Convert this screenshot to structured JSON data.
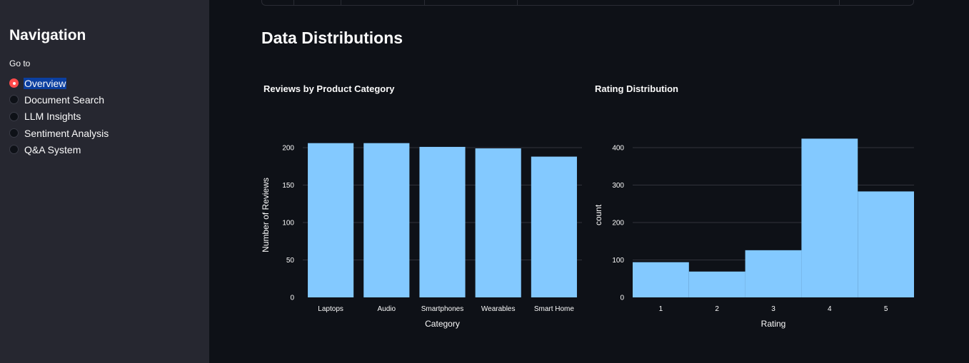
{
  "sidebar": {
    "title": "Navigation",
    "goto_label": "Go to",
    "items": [
      {
        "label": "Overview",
        "selected": true
      },
      {
        "label": "Document Search",
        "selected": false
      },
      {
        "label": "LLM Insights",
        "selected": false
      },
      {
        "label": "Sentiment Analysis",
        "selected": false
      },
      {
        "label": "Q&A System",
        "selected": false
      }
    ]
  },
  "main": {
    "title": "Data Distributions"
  },
  "colors": {
    "background": "#0e1117",
    "sidebar": "#262730",
    "bar": "#83c9ff",
    "radio_selected": "#ff4b4b",
    "highlight": "#0b3fa0"
  },
  "chart_data": [
    {
      "type": "bar",
      "title": "Reviews by Product Category",
      "xlabel": "Category",
      "ylabel": "Number of Reviews",
      "categories": [
        "Laptops",
        "Audio",
        "Smartphones",
        "Wearables",
        "Smart Home"
      ],
      "values": [
        206,
        206,
        201,
        199,
        188
      ],
      "yticks": [
        0,
        50,
        100,
        150,
        200
      ],
      "ylim": [
        0,
        220
      ],
      "grid": true
    },
    {
      "type": "bar",
      "title": "Rating Distribution",
      "xlabel": "Rating",
      "ylabel": "count",
      "categories": [
        "1",
        "2",
        "3",
        "4",
        "5"
      ],
      "values": [
        94,
        69,
        126,
        424,
        283
      ],
      "yticks": [
        0,
        100,
        200,
        300,
        400
      ],
      "ylim": [
        0,
        440
      ],
      "grid": true
    }
  ]
}
